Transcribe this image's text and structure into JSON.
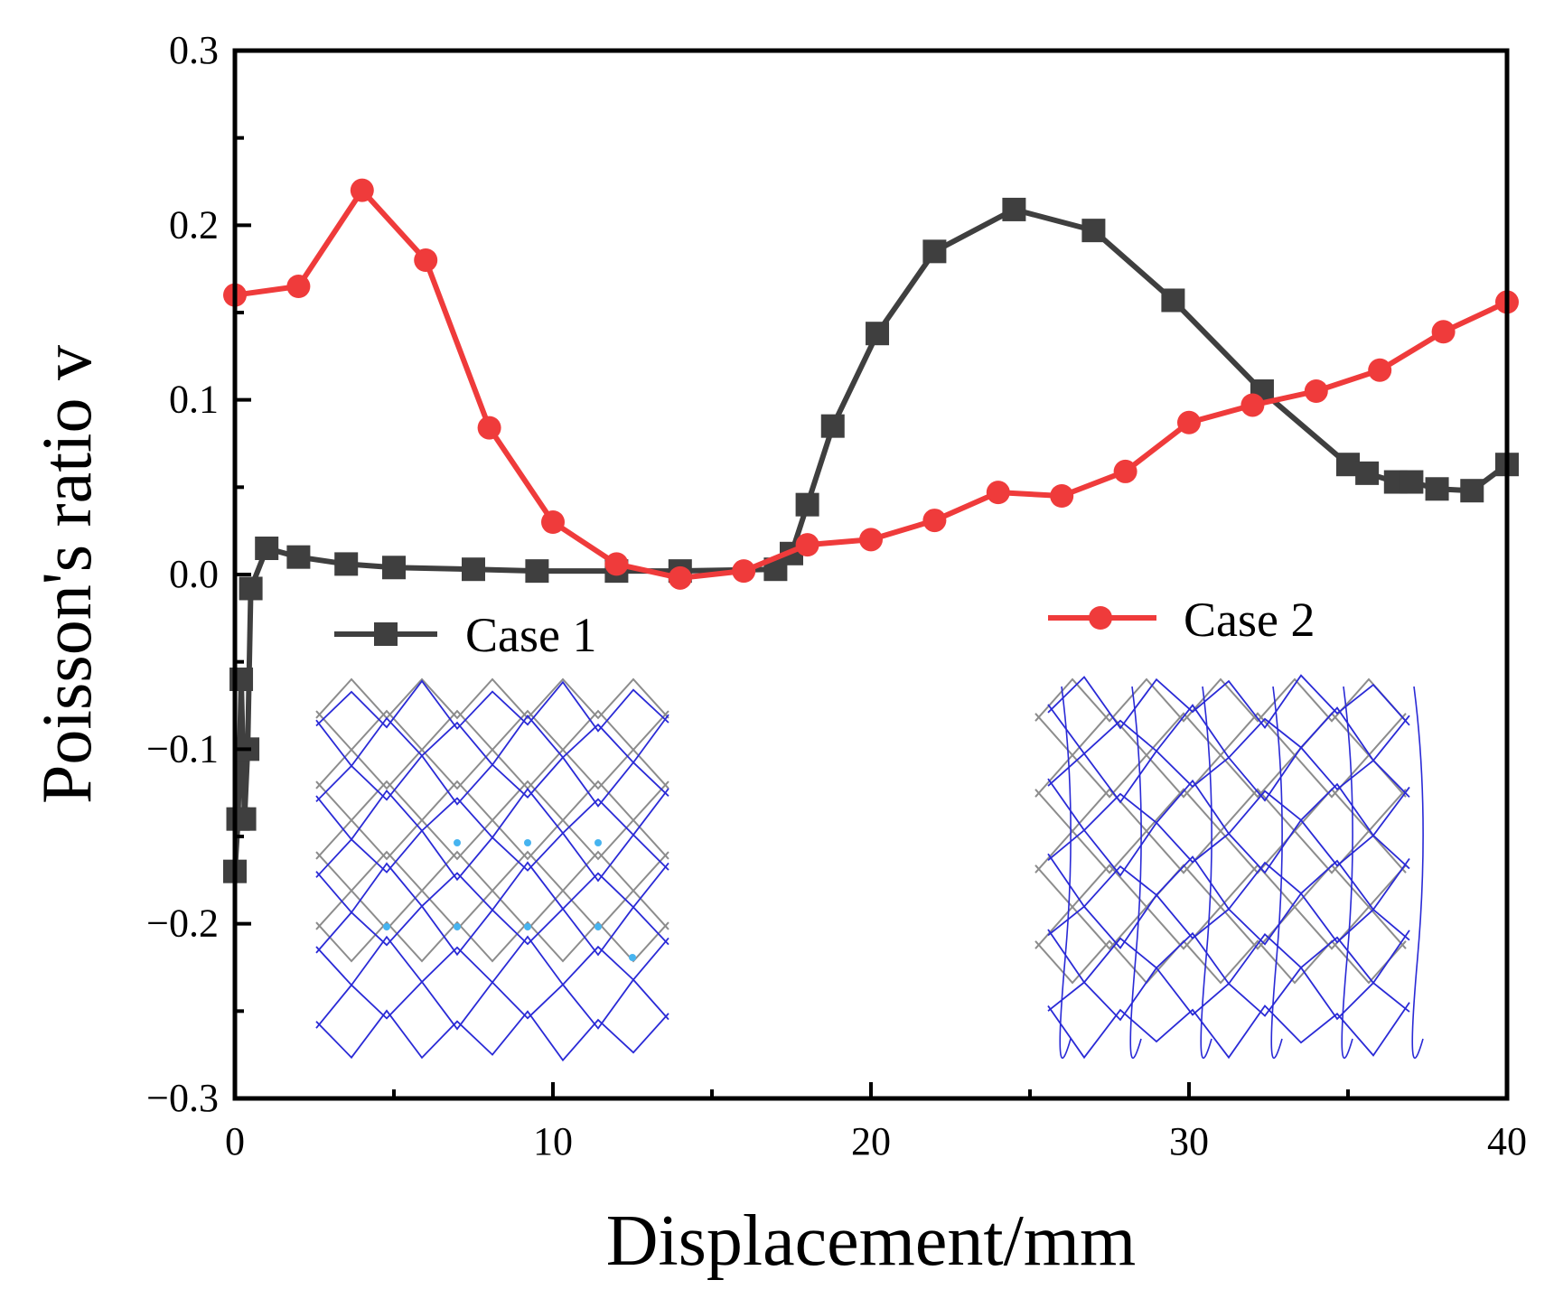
{
  "chart_data": {
    "type": "line",
    "xlabel": "Displacement/mm",
    "ylabel": "Poisson's ratio v",
    "xlim": [
      0,
      40
    ],
    "ylim": [
      -0.3,
      0.3
    ],
    "xticks": [
      0,
      10,
      20,
      30,
      40
    ],
    "yticks": [
      0.3,
      0.2,
      0.1,
      0.0,
      -0.1,
      -0.2,
      -0.3
    ],
    "ytick_labels": [
      "0.3",
      "0.2",
      "0.1",
      "0.0",
      "−0.1",
      "−0.2",
      "−0.3"
    ],
    "grid": false,
    "series": [
      {
        "name": "Case 1",
        "color": "#3f3f3f",
        "marker": "square",
        "points": [
          {
            "x": 0.0,
            "y": -0.17
          },
          {
            "x": 0.1,
            "y": -0.14
          },
          {
            "x": 0.2,
            "y": -0.06
          },
          {
            "x": 0.3,
            "y": -0.14
          },
          {
            "x": 0.4,
            "y": -0.1
          },
          {
            "x": 0.5,
            "y": -0.008
          },
          {
            "x": 1.0,
            "y": 0.015
          },
          {
            "x": 2.0,
            "y": 0.01
          },
          {
            "x": 3.5,
            "y": 0.006
          },
          {
            "x": 5.0,
            "y": 0.004
          },
          {
            "x": 7.5,
            "y": 0.003
          },
          {
            "x": 9.5,
            "y": 0.002
          },
          {
            "x": 12.0,
            "y": 0.002
          },
          {
            "x": 14.0,
            "y": 0.002
          },
          {
            "x": 17.0,
            "y": 0.003
          },
          {
            "x": 17.5,
            "y": 0.012
          },
          {
            "x": 18.0,
            "y": 0.04
          },
          {
            "x": 18.8,
            "y": 0.085
          },
          {
            "x": 20.2,
            "y": 0.138
          },
          {
            "x": 22.0,
            "y": 0.185
          },
          {
            "x": 24.5,
            "y": 0.209
          },
          {
            "x": 27.0,
            "y": 0.197
          },
          {
            "x": 29.5,
            "y": 0.157
          },
          {
            "x": 32.3,
            "y": 0.105
          },
          {
            "x": 35.0,
            "y": 0.063
          },
          {
            "x": 35.6,
            "y": 0.058
          },
          {
            "x": 36.5,
            "y": 0.053
          },
          {
            "x": 37.0,
            "y": 0.053
          },
          {
            "x": 37.8,
            "y": 0.049
          },
          {
            "x": 38.9,
            "y": 0.048
          },
          {
            "x": 40.0,
            "y": 0.063
          }
        ]
      },
      {
        "name": "Case 2",
        "color": "#ef3b3b",
        "marker": "circle",
        "points": [
          {
            "x": 0.0,
            "y": 0.16
          },
          {
            "x": 2.0,
            "y": 0.165
          },
          {
            "x": 4.0,
            "y": 0.22
          },
          {
            "x": 6.0,
            "y": 0.18
          },
          {
            "x": 8.0,
            "y": 0.084
          },
          {
            "x": 10.0,
            "y": 0.03
          },
          {
            "x": 12.0,
            "y": 0.006
          },
          {
            "x": 14.0,
            "y": -0.002
          },
          {
            "x": 16.0,
            "y": 0.002
          },
          {
            "x": 18.0,
            "y": 0.017
          },
          {
            "x": 20.0,
            "y": 0.02
          },
          {
            "x": 22.0,
            "y": 0.031
          },
          {
            "x": 24.0,
            "y": 0.047
          },
          {
            "x": 26.0,
            "y": 0.045
          },
          {
            "x": 28.0,
            "y": 0.059
          },
          {
            "x": 30.0,
            "y": 0.087
          },
          {
            "x": 32.0,
            "y": 0.097
          },
          {
            "x": 34.0,
            "y": 0.105
          },
          {
            "x": 36.0,
            "y": 0.117
          },
          {
            "x": 38.0,
            "y": 0.139
          },
          {
            "x": 40.0,
            "y": 0.156
          }
        ]
      }
    ],
    "legend": [
      {
        "label": "Case 1",
        "placement": "left"
      },
      {
        "label": "Case 2",
        "placement": "right"
      }
    ],
    "insets": [
      {
        "name": "case-1-lattice-deformation",
        "description_hidden": true
      },
      {
        "name": "case-2-lattice-deformation",
        "description_hidden": true
      }
    ],
    "colors": {
      "axis": "#000000",
      "lattice_undeformed": "#8c8c8c",
      "lattice_deformed": "#2a2ad6",
      "lattice_joint": "#46b4f0"
    }
  }
}
